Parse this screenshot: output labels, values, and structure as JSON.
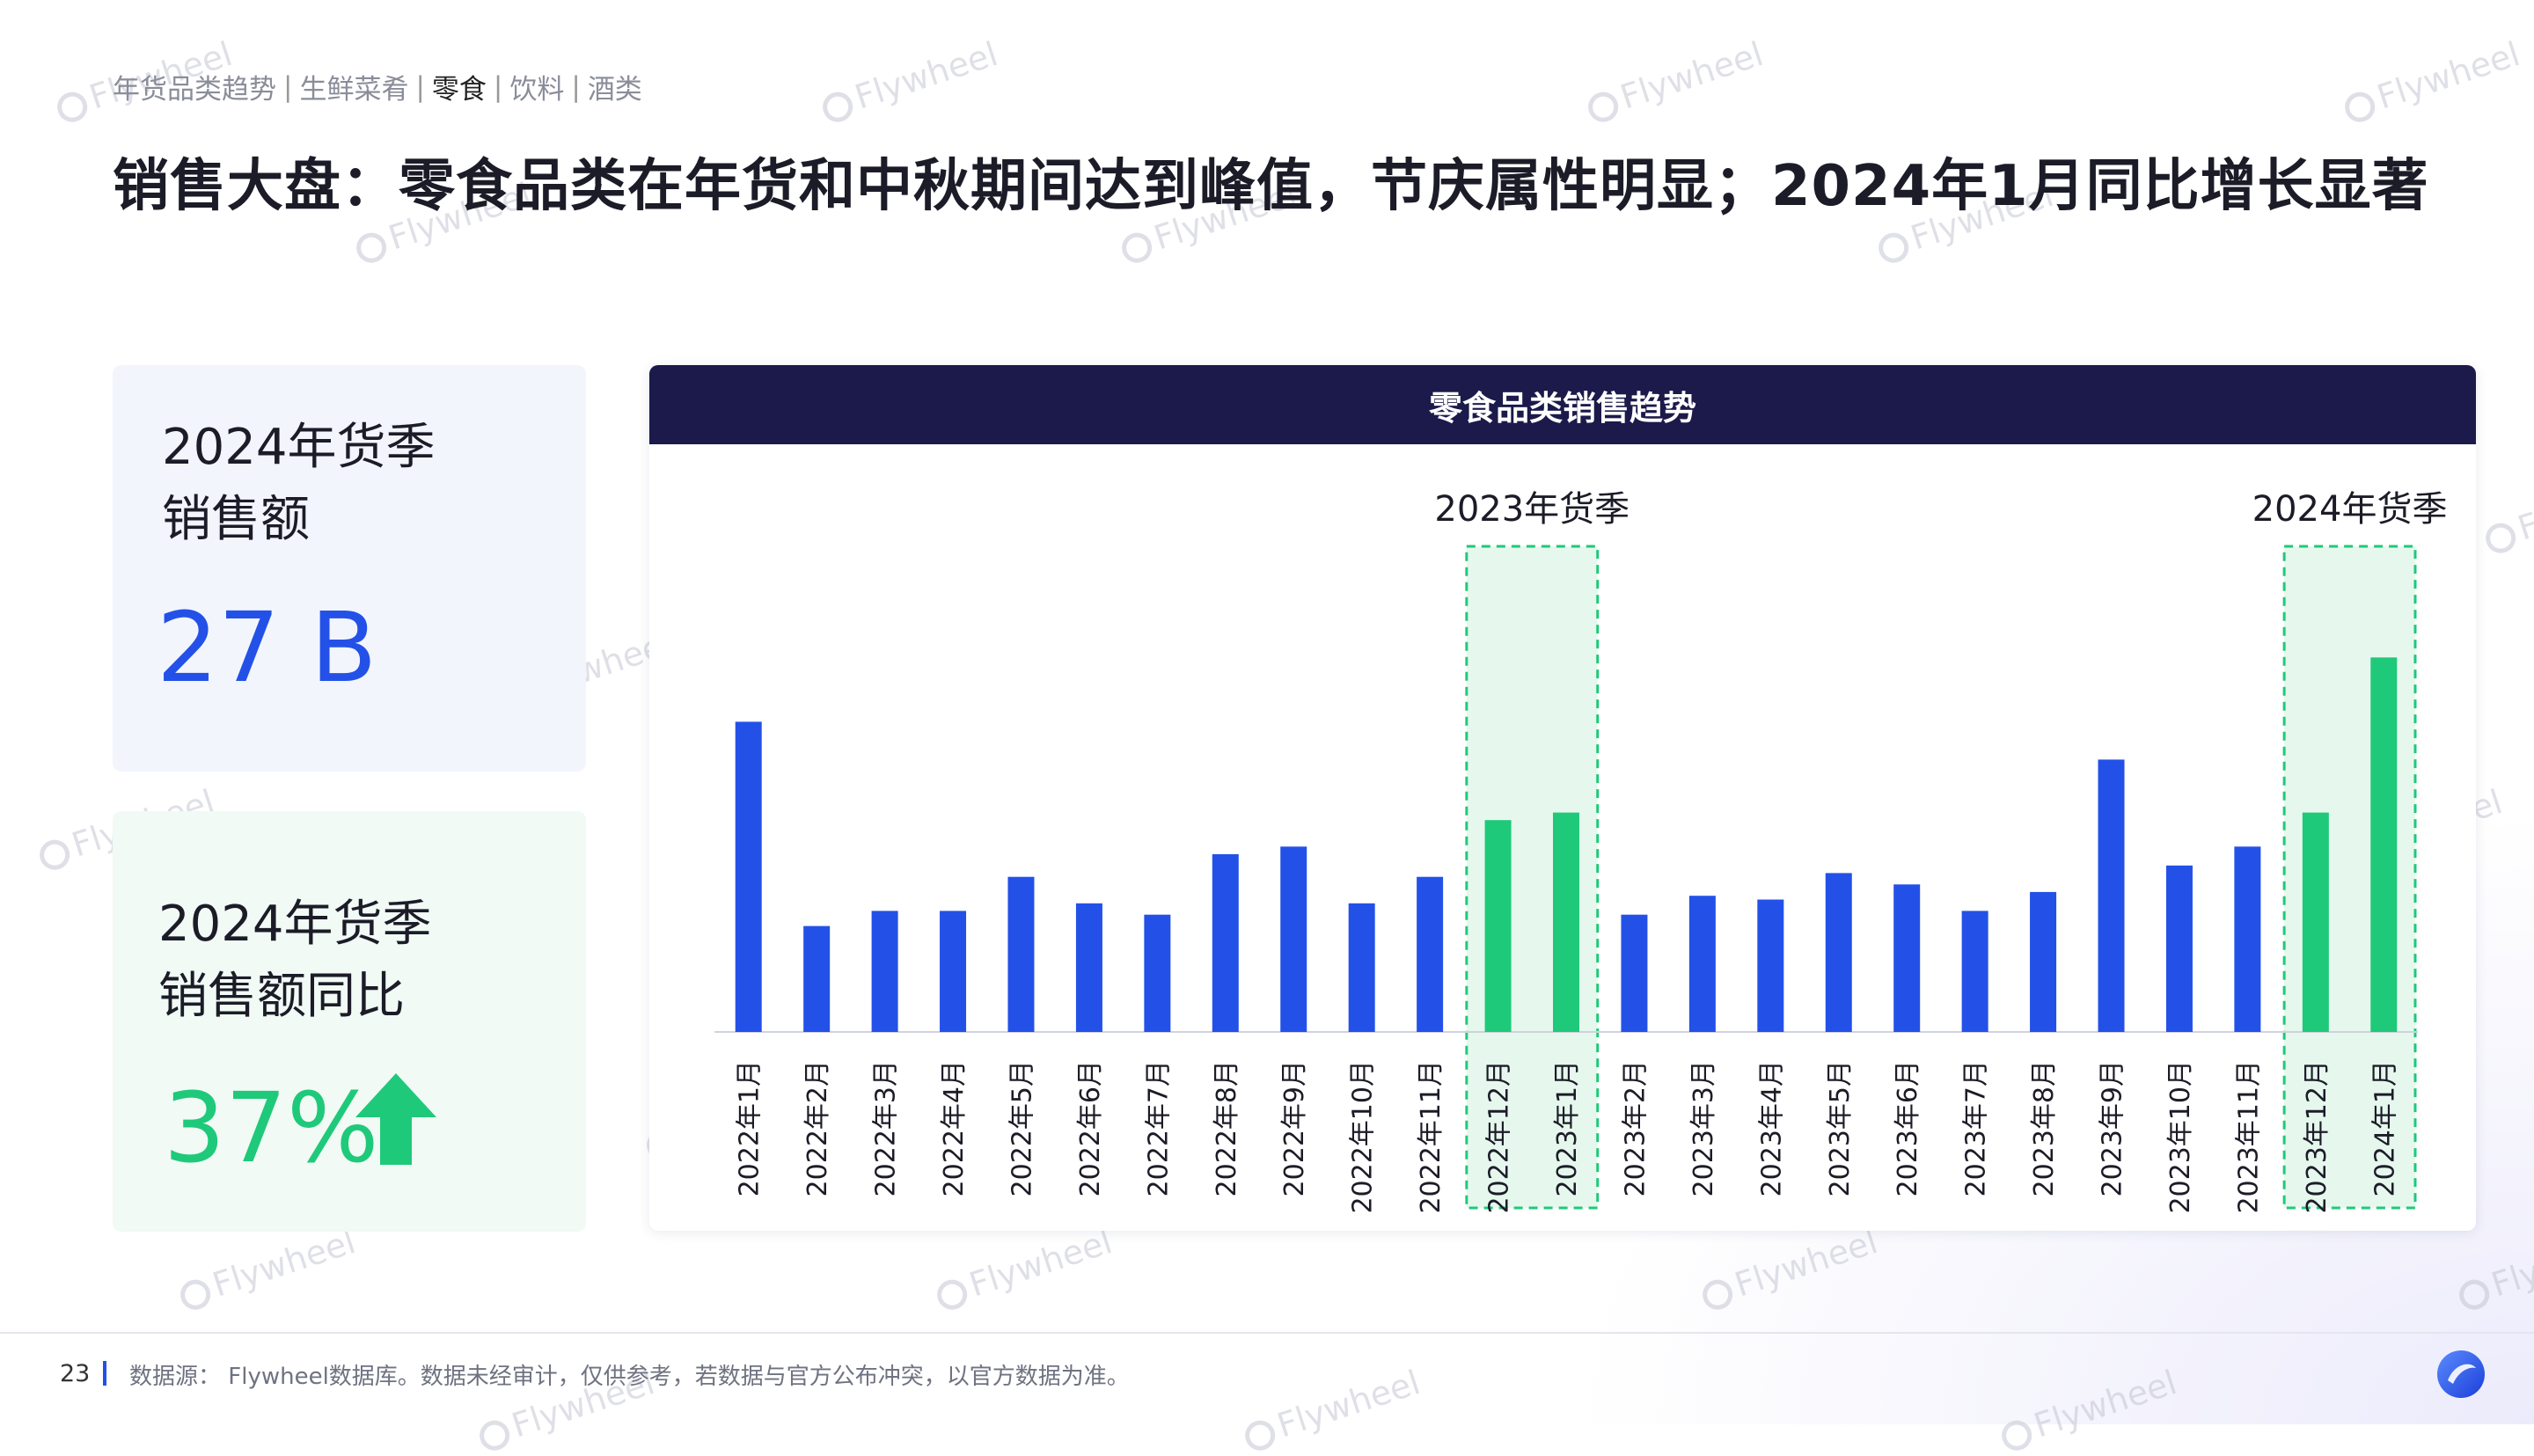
{
  "breadcrumb": [
    {
      "label": "年货品类趋势",
      "active": false
    },
    {
      "label": "生鲜菜肴",
      "active": false
    },
    {
      "label": "零食",
      "active": true
    },
    {
      "label": "饮料",
      "active": false
    },
    {
      "label": "酒类",
      "active": false
    }
  ],
  "breadcrumb_separator": "|",
  "title": "销售大盘：零食品类在年货和中秋期间达到峰值，节庆属性明显；2024年1月同比增长显著",
  "kpi": {
    "sales": {
      "label_line1": "2024年货季",
      "label_line2": "销售额",
      "value": "27 B"
    },
    "yoy": {
      "label_line1": "2024年货季",
      "label_line2": "销售额同比",
      "value": "37%"
    }
  },
  "chart_data": {
    "type": "bar",
    "title": "零食品类销售趋势",
    "categories": [
      "2022年1月",
      "2022年2月",
      "2022年3月",
      "2022年4月",
      "2022年5月",
      "2022年6月",
      "2022年7月",
      "2022年8月",
      "2022年9月",
      "2022年10月",
      "2022年11月",
      "2022年12月",
      "2023年1月",
      "2023年2月",
      "2023年3月",
      "2023年4月",
      "2023年5月",
      "2023年6月",
      "2023年7月",
      "2023年8月",
      "2023年9月",
      "2023年10月",
      "2023年11月",
      "2023年12月",
      "2024年1月"
    ],
    "values": [
      82,
      28,
      32,
      32,
      41,
      34,
      31,
      47,
      49,
      34,
      41,
      56,
      58,
      31,
      36,
      35,
      42,
      39,
      32,
      37,
      72,
      44,
      49,
      58,
      99
    ],
    "highlight_indices": [
      11,
      12,
      23,
      24
    ],
    "highlight_bands": [
      {
        "label": "2023年货季",
        "start": 11,
        "end": 12
      },
      {
        "label": "2024年货季",
        "start": 23,
        "end": 24
      }
    ],
    "ylim": [
      0,
      100
    ],
    "y_axis_visible": false,
    "colors": {
      "normal": "#2351e8",
      "highlight": "#1fc97a",
      "band_fill": "#e6f8ed",
      "band_border": "#1fc97a"
    }
  },
  "footer": {
    "page_number": "23",
    "source_note": "数据源： Flywheel数据库。数据未经审计，仅供参考，若数据与官方公布冲突，以官方数据为准。"
  },
  "watermark_text": "Flywheel",
  "icons": {
    "up_arrow": "up-arrow-icon",
    "logo": "flywheel-logo-icon"
  }
}
